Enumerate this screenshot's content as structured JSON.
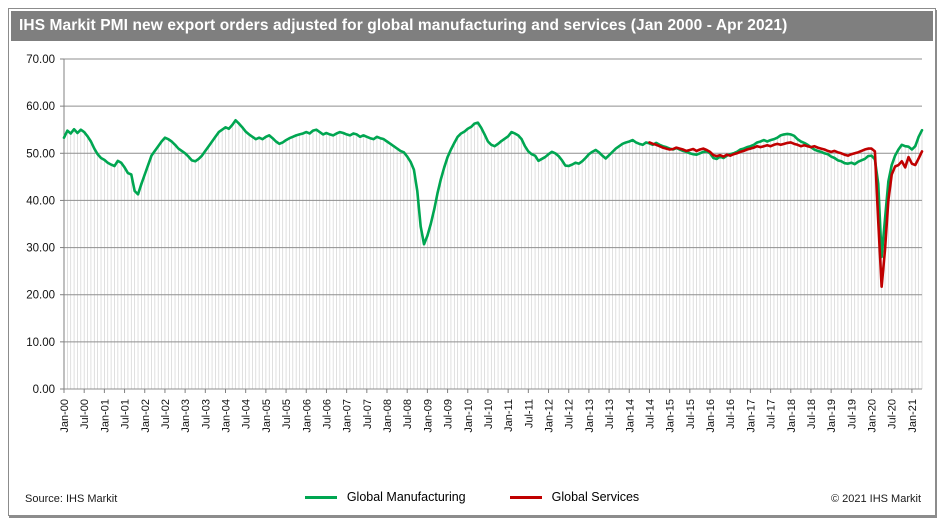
{
  "title": "IHS Markit PMI new export orders adjusted for global manufacturing and services (Jan 2000 - Apr 2021)",
  "footer": {
    "source": "Source: IHS Markit",
    "copyright": "© 2021 IHS Markit"
  },
  "legend": {
    "manufacturing": {
      "label": "Global Manufacturing",
      "color": "#00A651"
    },
    "services": {
      "label": "Global Services",
      "color": "#C00000"
    }
  },
  "colors": {
    "title_bar_bg": "#7F7F7F",
    "title_text": "#FFFFFF",
    "gridline": "#8F8F8F",
    "drop_line": "#D2D2D2",
    "axis": "#808080",
    "manufacturing_line": "#00A651",
    "services_line": "#C00000"
  },
  "chart_data": {
    "type": "line",
    "title": "IHS Markit PMI new export orders adjusted for global manufacturing and services (Jan 2000 - Apr 2021)",
    "xlabel": "",
    "ylabel": "",
    "x_unit": "month",
    "x_range": "Jan-2000 to Apr-2021",
    "ylim": [
      0,
      70
    ],
    "y_tick_step": 10,
    "y_tick_labels": [
      "0.00",
      "10.00",
      "20.00",
      "30.00",
      "40.00",
      "50.00",
      "60.00",
      "70.00"
    ],
    "x_tick_every_months": 6,
    "x_tick_labels": [
      "Jan-00",
      "Jul-00",
      "Jan-01",
      "Jul-01",
      "Jan-02",
      "Jul-02",
      "Jan-03",
      "Jul-03",
      "Jan-04",
      "Jul-04",
      "Jan-05",
      "Jul-05",
      "Jan-06",
      "Jul-06",
      "Jan-07",
      "Jul-07",
      "Jan-08",
      "Jul-08",
      "Jan-09",
      "Jul-09",
      "Jan-10",
      "Jul-10",
      "Jan-11",
      "Jul-11",
      "Jan-12",
      "Jul-12",
      "Jan-13",
      "Jul-13",
      "Jan-14",
      "Jul-14",
      "Jan-15",
      "Jul-15",
      "Jan-16",
      "Jul-16",
      "Jan-17",
      "Jul-17",
      "Jan-18",
      "Jul-18",
      "Jan-19",
      "Jul-19",
      "Jan-20",
      "Jul-20",
      "Jan-21"
    ],
    "grid": {
      "horizontal": true,
      "vertical_drop_lines_to_series": true
    },
    "legend_position": "bottom",
    "series": [
      {
        "name": "Global Manufacturing",
        "color": "#00A651",
        "start": "Jan-2000",
        "start_index": 0,
        "values": [
          53.3,
          54.8,
          54.2,
          55.1,
          54.3,
          55.0,
          54.5,
          53.6,
          52.5,
          51.0,
          49.8,
          49.0,
          48.6,
          48.0,
          47.6,
          47.3,
          48.4,
          48.0,
          47.0,
          45.8,
          45.5,
          42.0,
          41.3,
          43.5,
          45.5,
          47.5,
          49.5,
          50.5,
          51.5,
          52.5,
          53.3,
          53.0,
          52.5,
          51.8,
          51.0,
          50.5,
          50.0,
          49.3,
          48.5,
          48.3,
          48.8,
          49.5,
          50.5,
          51.5,
          52.5,
          53.5,
          54.5,
          55.0,
          55.5,
          55.2,
          56.0,
          57.0,
          56.3,
          55.5,
          54.6,
          54.0,
          53.5,
          53.0,
          53.3,
          53.0,
          53.5,
          53.8,
          53.2,
          52.5,
          52.0,
          52.3,
          52.8,
          53.2,
          53.5,
          53.8,
          54.0,
          54.2,
          54.5,
          54.2,
          54.8,
          55.0,
          54.5,
          54.0,
          54.3,
          54.0,
          53.8,
          54.2,
          54.5,
          54.3,
          54.0,
          53.8,
          54.2,
          54.0,
          53.5,
          53.8,
          53.5,
          53.2,
          53.0,
          53.5,
          53.2,
          53.0,
          52.5,
          52.0,
          51.5,
          51.0,
          50.5,
          50.2,
          49.3,
          48.2,
          46.5,
          42.0,
          34.5,
          30.7,
          32.5,
          35.0,
          38.0,
          41.5,
          44.5,
          47.0,
          49.2,
          50.8,
          52.2,
          53.5,
          54.2,
          54.6,
          55.2,
          55.6,
          56.3,
          56.5,
          55.4,
          54.0,
          52.5,
          51.8,
          51.5,
          52.0,
          52.6,
          53.1,
          53.6,
          54.5,
          54.2,
          53.8,
          53.0,
          51.5,
          50.4,
          49.8,
          49.5,
          48.4,
          48.8,
          49.2,
          49.8,
          50.3,
          50.0,
          49.4,
          48.5,
          47.4,
          47.3,
          47.6,
          48.0,
          47.8,
          48.3,
          49.0,
          49.8,
          50.3,
          50.7,
          50.2,
          49.5,
          48.9,
          49.6,
          50.3,
          51.0,
          51.5,
          52.0,
          52.3,
          52.5,
          52.8,
          52.3,
          52.0,
          51.8,
          52.3,
          52.1,
          51.8,
          52.2,
          51.8,
          51.5,
          51.3,
          51.0,
          50.8,
          51.1,
          50.8,
          50.5,
          50.3,
          50.0,
          49.8,
          49.7,
          50.0,
          50.3,
          50.4,
          50.0,
          49.0,
          48.8,
          49.3,
          49.0,
          49.5,
          49.8,
          50.0,
          50.3,
          50.8,
          51.0,
          51.3,
          51.5,
          51.8,
          52.3,
          52.5,
          52.8,
          52.5,
          52.8,
          53.0,
          53.3,
          53.8,
          54.0,
          54.1,
          54.0,
          53.7,
          53.0,
          52.5,
          52.2,
          51.8,
          51.3,
          50.8,
          50.5,
          50.3,
          50.0,
          49.8,
          49.3,
          49.0,
          48.5,
          48.3,
          47.9,
          47.8,
          48.0,
          47.7,
          48.2,
          48.5,
          48.8,
          49.4,
          49.5,
          48.7,
          43.5,
          28.0,
          36.0,
          44.0,
          47.5,
          49.5,
          50.8,
          51.8,
          51.5,
          51.4,
          50.8,
          51.5,
          53.5,
          54.9
        ]
      },
      {
        "name": "Global Services",
        "color": "#C00000",
        "start": "Jul-2014",
        "start_index": 174,
        "values": [
          52.3,
          52.0,
          51.8,
          51.5,
          51.2,
          51.0,
          50.8,
          50.9,
          51.2,
          51.0,
          50.8,
          50.5,
          50.7,
          50.9,
          50.5,
          50.8,
          51.0,
          50.7,
          50.3,
          49.6,
          49.4,
          49.6,
          49.3,
          49.7,
          49.5,
          49.8,
          50.0,
          50.3,
          50.5,
          50.8,
          51.0,
          51.2,
          51.5,
          51.3,
          51.5,
          51.7,
          51.5,
          51.8,
          52.0,
          51.8,
          52.0,
          52.2,
          52.3,
          52.0,
          51.8,
          51.5,
          51.7,
          51.5,
          51.3,
          51.5,
          51.2,
          51.0,
          50.8,
          50.5,
          50.3,
          50.5,
          50.2,
          50.0,
          49.7,
          49.5,
          49.8,
          50.0,
          50.2,
          50.5,
          50.8,
          51.0,
          51.0,
          50.4,
          35.5,
          21.7,
          29.5,
          40.0,
          45.5,
          47.2,
          47.5,
          48.3,
          47.0,
          49.2,
          47.8,
          47.5,
          48.9,
          50.4
        ]
      }
    ]
  }
}
